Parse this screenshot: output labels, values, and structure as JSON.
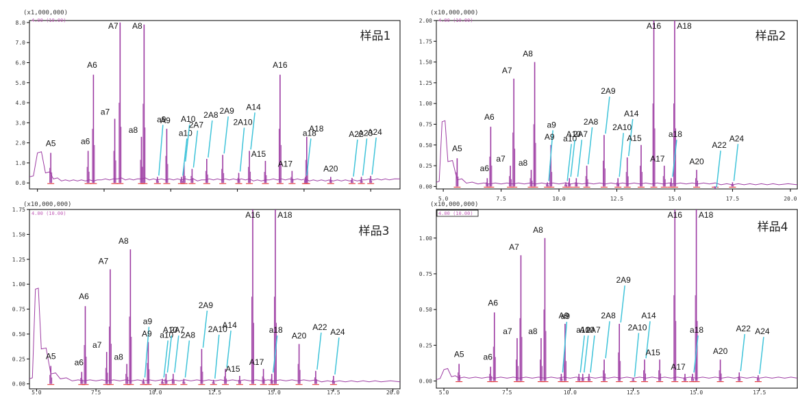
{
  "colors": {
    "trace": "#9c3aa2",
    "baseline": "#e02020",
    "leader": "#3ec3d9",
    "frame": "#000000",
    "subtitle": "#c05ab6"
  },
  "chart_data": [
    {
      "type": "line",
      "title": "样品1",
      "multiplier": "(x1,000,000)",
      "subtitle": "4.00 (10.00)",
      "xlim": [
        4.7,
        18.6
      ],
      "ylim": [
        -0.3,
        8.1
      ],
      "x_ticks": [
        5.0,
        7.5,
        10.0,
        12.5,
        15.0,
        17.5
      ],
      "x_tick_labels": [
        "5.0",
        "7.5",
        "10.0",
        "12.5",
        "15.0",
        "17.5"
      ],
      "x_tick_labels_shown": false,
      "y_ticks": [
        0,
        1,
        2,
        3,
        4,
        5,
        6,
        7,
        8
      ],
      "y_tick_labels": [
        "0.0",
        "1.0",
        "2.0",
        "3.0",
        "4.0",
        "5.0",
        "6.0",
        "7.0",
        "8.0"
      ],
      "x": [
        4.7,
        5.0,
        5.3,
        5.6,
        5.9,
        6.2,
        6.5,
        6.8,
        7.1,
        7.4,
        7.7,
        8.0,
        8.3,
        8.6,
        8.9,
        9.2,
        9.5,
        9.8,
        10.1,
        10.4,
        10.7,
        11.0,
        11.3,
        11.6,
        11.9,
        12.2,
        12.5,
        12.8,
        13.1,
        13.4,
        13.7,
        14.0,
        14.3,
        14.6,
        14.9,
        15.2,
        15.5,
        15.8,
        16.1,
        16.4,
        16.7,
        17.0,
        17.3,
        17.6,
        17.9,
        18.2,
        18.6
      ],
      "y": [
        0.3,
        1.5,
        0.5,
        0.2,
        0.1,
        0.1,
        0.1,
        0.1,
        0.1,
        0.15,
        0.15,
        0.2,
        0.15,
        0.15,
        0.2,
        0.15,
        0.15,
        0.15,
        0.15,
        0.15,
        0.15,
        0.1,
        0.15,
        0.15,
        0.15,
        0.15,
        0.15,
        0.15,
        0.1,
        0.1,
        0.15,
        0.15,
        0.15,
        0.15,
        0.15,
        0.1,
        0.1,
        0.1,
        0.1,
        0.1,
        0.1,
        0.1,
        0.15,
        0.15,
        0.15,
        0.15,
        0.2
      ],
      "peaks": [
        {
          "label": "A5",
          "x": 5.5,
          "y": 1.5
        },
        {
          "label": "a6",
          "x": 6.9,
          "y": 1.6
        },
        {
          "label": "A6",
          "x": 7.1,
          "y": 5.4
        },
        {
          "label": "a7",
          "x": 7.9,
          "y": 3.2
        },
        {
          "label": "A7",
          "x": 8.1,
          "y": 8.0
        },
        {
          "label": "a8",
          "x": 8.9,
          "y": 2.3
        },
        {
          "label": "A8",
          "x": 9.0,
          "y": 7.9
        },
        {
          "label": "a9",
          "x": 9.5,
          "y": 0.3
        },
        {
          "label": "A9",
          "x": 9.85,
          "y": 2.7
        },
        {
          "label": "a10",
          "x": 10.4,
          "y": 0.3
        },
        {
          "label": "A10",
          "x": 10.5,
          "y": 1.0
        },
        {
          "label": "2A7",
          "x": 10.8,
          "y": 0.7
        },
        {
          "label": "2A8",
          "x": 11.35,
          "y": 1.2
        },
        {
          "label": "2A9",
          "x": 11.95,
          "y": 1.4
        },
        {
          "label": "2A10",
          "x": 12.55,
          "y": 0.5
        },
        {
          "label": "A14",
          "x": 12.95,
          "y": 1.6
        },
        {
          "label": "A15",
          "x": 13.55,
          "y": 1.1
        },
        {
          "label": "A16",
          "x": 14.1,
          "y": 5.4
        },
        {
          "label": "A17",
          "x": 14.55,
          "y": 0.6
        },
        {
          "label": "a18",
          "x": 15.05,
          "y": 0.3
        },
        {
          "label": "A18",
          "x": 15.1,
          "y": 2.3
        },
        {
          "label": "A20",
          "x": 16.0,
          "y": 0.3
        },
        {
          "label": "A22",
          "x": 16.8,
          "y": 0.25
        },
        {
          "label": "A23",
          "x": 17.15,
          "y": 0.3
        },
        {
          "label": "A24",
          "x": 17.5,
          "y": 0.35
        }
      ]
    },
    {
      "type": "line",
      "title": "样品2",
      "multiplier": "(x10,000,000)",
      "subtitle": "4.00 (10.00)",
      "xlim": [
        4.7,
        20.3
      ],
      "ylim": [
        -0.03,
        2.0
      ],
      "x_ticks": [
        5.0,
        7.5,
        10.0,
        12.5,
        15.0,
        17.5,
        20.0
      ],
      "x_tick_labels": [
        "5.0",
        "7.5",
        "10.0",
        "12.5",
        "15.0",
        "17.5",
        "20.0"
      ],
      "x_tick_labels_shown": true,
      "y_ticks": [
        0,
        0.25,
        0.5,
        0.75,
        1.0,
        1.25,
        1.5,
        1.75,
        2.0
      ],
      "y_tick_labels": [
        "0.00",
        "0.25",
        "0.50",
        "0.75",
        "1.00",
        "1.25",
        "1.50",
        "1.75",
        "2.00"
      ],
      "x": [
        4.7,
        4.95,
        5.2,
        5.6,
        6.0,
        6.5,
        7.0,
        7.5,
        8.0,
        8.5,
        9.0,
        9.5,
        10.0,
        10.5,
        11.0,
        11.5,
        12.0,
        12.5,
        13.0,
        13.5,
        14.0,
        14.5,
        15.0,
        15.5,
        16.0,
        16.5,
        17.0,
        17.5,
        18.0,
        18.5,
        19.0,
        19.5,
        20.3
      ],
      "y": [
        0.05,
        0.78,
        0.3,
        0.08,
        0.04,
        0.03,
        0.03,
        0.03,
        0.03,
        0.03,
        0.03,
        0.03,
        0.03,
        0.03,
        0.03,
        0.03,
        0.03,
        0.03,
        0.03,
        0.03,
        0.03,
        0.03,
        0.03,
        0.03,
        0.03,
        0.03,
        0.02,
        0.02,
        0.02,
        0.02,
        0.02,
        0.02,
        0.02
      ],
      "peaks": [
        {
          "label": "A5",
          "x": 5.6,
          "y": 0.34
        },
        {
          "label": "a6",
          "x": 6.9,
          "y": 0.1
        },
        {
          "label": "A6",
          "x": 7.05,
          "y": 0.72
        },
        {
          "label": "a7",
          "x": 7.9,
          "y": 0.25
        },
        {
          "label": "A7",
          "x": 8.05,
          "y": 1.3
        },
        {
          "label": "a8",
          "x": 8.8,
          "y": 0.2
        },
        {
          "label": "A8",
          "x": 8.95,
          "y": 1.5
        },
        {
          "label": "a9",
          "x": 9.5,
          "y": 0.05
        },
        {
          "label": "A9",
          "x": 9.65,
          "y": 0.5
        },
        {
          "label": "a10",
          "x": 10.3,
          "y": 0.05
        },
        {
          "label": "A10",
          "x": 10.45,
          "y": 0.1
        },
        {
          "label": "2A7",
          "x": 10.75,
          "y": 0.1
        },
        {
          "label": "2A8",
          "x": 11.2,
          "y": 0.25
        },
        {
          "label": "2A9",
          "x": 11.95,
          "y": 0.62
        },
        {
          "label": "2A10",
          "x": 12.55,
          "y": 0.1
        },
        {
          "label": "A14",
          "x": 12.95,
          "y": 0.35
        },
        {
          "label": "A15",
          "x": 13.55,
          "y": 0.5
        },
        {
          "label": "A16",
          "x": 14.1,
          "y": 2.0
        },
        {
          "label": "A17",
          "x": 14.55,
          "y": 0.25
        },
        {
          "label": "a18",
          "x": 14.85,
          "y": 0.1
        },
        {
          "label": "A18",
          "x": 15.0,
          "y": 2.0
        },
        {
          "label": "A20",
          "x": 15.95,
          "y": 0.2
        },
        {
          "label": "A22",
          "x": 16.75,
          "y": -0.03
        },
        {
          "label": "A24",
          "x": 17.5,
          "y": 0.05
        }
      ]
    },
    {
      "type": "line",
      "title": "样品3",
      "multiplier": "(x10,000,000)",
      "subtitle": "4.00 (10.00)",
      "xlim": [
        4.7,
        20.3
      ],
      "ylim": [
        -0.05,
        1.75
      ],
      "x_ticks": [
        5.0,
        7.5,
        10.0,
        12.5,
        15.0,
        17.5,
        20.0
      ],
      "x_tick_labels": [
        "5.0",
        "7.5",
        "10.0",
        "12.5",
        "15.0",
        "17.5",
        "20.0"
      ],
      "x_tick_labels_shown": true,
      "y_ticks": [
        0,
        0.25,
        0.5,
        0.75,
        1.0,
        1.25,
        1.5,
        1.75
      ],
      "y_tick_labels": [
        "0.00",
        "0.25",
        "0.50",
        "0.75",
        "1.00",
        "1.25",
        "1.50",
        "1.75"
      ],
      "x": [
        4.7,
        4.95,
        5.2,
        5.6,
        6.0,
        6.5,
        7.0,
        7.5,
        8.0,
        8.5,
        9.0,
        9.5,
        10.0,
        10.5,
        11.0,
        11.5,
        12.0,
        12.5,
        13.0,
        13.5,
        14.0,
        14.5,
        15.0,
        15.5,
        16.0,
        16.5,
        17.0,
        17.5,
        18.0,
        18.5,
        19.0,
        19.5,
        20.3
      ],
      "y": [
        0.05,
        0.95,
        0.35,
        0.1,
        0.05,
        0.03,
        0.03,
        0.03,
        0.03,
        0.03,
        0.03,
        0.03,
        0.03,
        0.03,
        0.03,
        0.03,
        0.03,
        0.03,
        0.03,
        0.03,
        0.03,
        0.03,
        0.03,
        0.03,
        0.03,
        0.03,
        0.02,
        0.02,
        0.02,
        0.02,
        0.02,
        0.02,
        0.02
      ],
      "peaks": [
        {
          "label": "A5",
          "x": 5.6,
          "y": 0.18
        },
        {
          "label": "a6",
          "x": 6.9,
          "y": 0.12
        },
        {
          "label": "A6",
          "x": 7.05,
          "y": 0.78
        },
        {
          "label": "a7",
          "x": 7.95,
          "y": 0.32
        },
        {
          "label": "A7",
          "x": 8.1,
          "y": 1.15
        },
        {
          "label": "a8",
          "x": 8.8,
          "y": 0.2
        },
        {
          "label": "A8",
          "x": 8.95,
          "y": 1.35
        },
        {
          "label": "a9",
          "x": 9.5,
          "y": 0.05
        },
        {
          "label": "A9",
          "x": 9.7,
          "y": 0.42
        },
        {
          "label": "a10",
          "x": 10.3,
          "y": 0.05
        },
        {
          "label": "A10",
          "x": 10.45,
          "y": 0.1
        },
        {
          "label": "2A7",
          "x": 10.75,
          "y": 0.1
        },
        {
          "label": "2A8",
          "x": 11.2,
          "y": 0.05
        },
        {
          "label": "2A9",
          "x": 11.95,
          "y": 0.35
        },
        {
          "label": "2A10",
          "x": 12.45,
          "y": 0.04
        },
        {
          "label": "A14",
          "x": 12.95,
          "y": 0.15
        },
        {
          "label": "A15",
          "x": 13.55,
          "y": 0.08
        },
        {
          "label": "A16",
          "x": 14.1,
          "y": 1.75
        },
        {
          "label": "A17",
          "x": 14.55,
          "y": 0.15
        },
        {
          "label": "a18",
          "x": 14.9,
          "y": 0.1
        },
        {
          "label": "A18",
          "x": 15.05,
          "y": 1.75
        },
        {
          "label": "A20",
          "x": 16.05,
          "y": 0.4
        },
        {
          "label": "A22",
          "x": 16.75,
          "y": 0.13
        },
        {
          "label": "A24",
          "x": 17.5,
          "y": 0.08
        }
      ]
    },
    {
      "type": "line",
      "title": "样品4",
      "multiplier": "(x10,000,000)",
      "subtitle": "4.00 (10.00)",
      "xlim": [
        4.7,
        19.0
      ],
      "ylim": [
        -0.05,
        1.2
      ],
      "x_ticks": [
        5.0,
        7.5,
        10.0,
        12.5,
        15.0,
        17.5
      ],
      "x_tick_labels": [
        "5.0",
        "7.5",
        "10.0",
        "12.5",
        "15.0",
        "17.5"
      ],
      "x_tick_labels_shown": true,
      "y_ticks": [
        0,
        0.25,
        0.5,
        0.75,
        1.0
      ],
      "y_tick_labels": [
        "0.00",
        "0.25",
        "0.50",
        "0.75",
        "1.00"
      ],
      "x": [
        4.7,
        5.0,
        5.3,
        5.6,
        6.0,
        6.5,
        7.0,
        7.5,
        8.0,
        8.5,
        9.0,
        9.5,
        10.0,
        10.5,
        11.0,
        11.5,
        12.0,
        12.5,
        13.0,
        13.5,
        14.0,
        14.5,
        15.0,
        15.5,
        16.0,
        16.5,
        17.0,
        17.5,
        18.0,
        18.5,
        19.0
      ],
      "y": [
        0.01,
        0.08,
        0.03,
        0.02,
        0.02,
        0.02,
        0.02,
        0.02,
        0.02,
        0.02,
        0.02,
        0.02,
        0.02,
        0.02,
        0.02,
        0.02,
        0.02,
        0.02,
        0.02,
        0.02,
        0.02,
        0.02,
        0.02,
        0.02,
        0.02,
        0.02,
        0.02,
        0.02,
        0.02,
        0.02,
        0.02
      ],
      "peaks": [
        {
          "label": "A5",
          "x": 5.6,
          "y": 0.12
        },
        {
          "label": "a6",
          "x": 6.85,
          "y": 0.1
        },
        {
          "label": "A6",
          "x": 7.0,
          "y": 0.48
        },
        {
          "label": "a7",
          "x": 7.9,
          "y": 0.3
        },
        {
          "label": "A7",
          "x": 8.05,
          "y": 0.88
        },
        {
          "label": "a8",
          "x": 8.85,
          "y": 0.3
        },
        {
          "label": "A8",
          "x": 9.0,
          "y": 1.0
        },
        {
          "label": "a9",
          "x": 9.65,
          "y": 0.05
        },
        {
          "label": "A9",
          "x": 9.8,
          "y": 0.4
        },
        {
          "label": "a10",
          "x": 10.35,
          "y": 0.05
        },
        {
          "label": "A10",
          "x": 10.5,
          "y": 0.05
        },
        {
          "label": "2A7",
          "x": 10.75,
          "y": 0.05
        },
        {
          "label": "2A8",
          "x": 11.35,
          "y": 0.15
        },
        {
          "label": "2A9",
          "x": 11.95,
          "y": 0.4
        },
        {
          "label": "2A10",
          "x": 12.5,
          "y": 0.02
        },
        {
          "label": "A14",
          "x": 12.95,
          "y": 0.15
        },
        {
          "label": "A15",
          "x": 13.55,
          "y": 0.15
        },
        {
          "label": "A16",
          "x": 14.15,
          "y": 1.2
        },
        {
          "label": "A17",
          "x": 14.55,
          "y": 0.05
        },
        {
          "label": "a18",
          "x": 14.85,
          "y": 0.05
        },
        {
          "label": "A18",
          "x": 15.0,
          "y": 1.2
        },
        {
          "label": "A20",
          "x": 15.95,
          "y": 0.15
        },
        {
          "label": "A22",
          "x": 16.7,
          "y": 0.06
        },
        {
          "label": "A24",
          "x": 17.45,
          "y": 0.04
        }
      ]
    }
  ]
}
